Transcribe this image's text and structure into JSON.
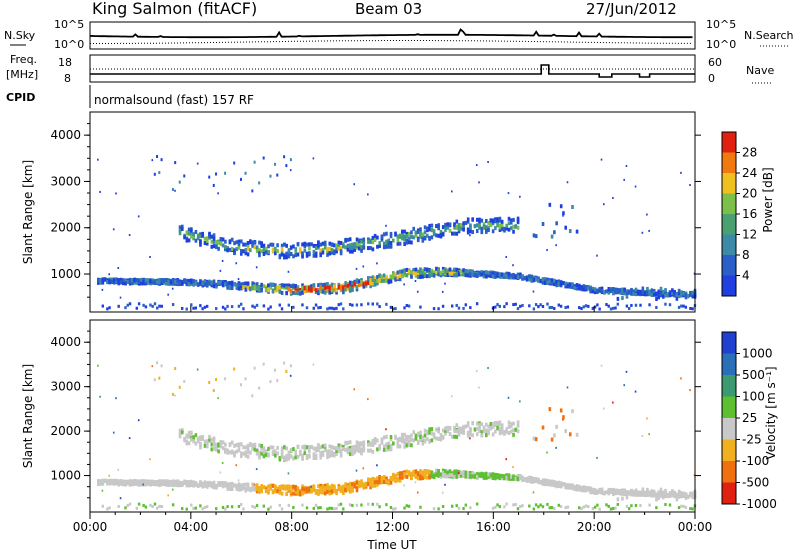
{
  "header": {
    "station": "King Salmon (fitACF)",
    "beam": "Beam 03",
    "date": "27/Jun/2012"
  },
  "panels": {
    "nsky_label": "N.Sky",
    "nsky_ticks": [
      "10^5",
      "10^0"
    ],
    "nsearch_label": "N.Search",
    "nsearch_ticks": [
      "10^5",
      "10^0"
    ],
    "freq_label_1": "Freq.",
    "freq_label_2": "[MHz]",
    "freq_ticks": [
      "18",
      "8"
    ],
    "nave_label": "Nave",
    "nave_ticks": [
      "60",
      "0"
    ],
    "cpid_label": "CPID",
    "cpid_text": "normalsound (fast) 157 RF"
  },
  "chart_data": [
    {
      "type": "heatmap",
      "name": "power",
      "ylabel": "Slant Range [km]",
      "xlabel": "",
      "ylim": [
        180,
        4500
      ],
      "yticks": [
        "1000",
        "2000",
        "3000",
        "4000"
      ],
      "colorbar_label": "Power [dB]",
      "colorbar_ticks": [
        "4",
        "8",
        "12",
        "16",
        "20",
        "24",
        "28"
      ],
      "colorbar_colors": [
        "#1f3fe0",
        "#2a5fc8",
        "#3c8aa8",
        "#4aa070",
        "#7cc04a",
        "#f0c020",
        "#f07a10",
        "#e02010"
      ],
      "bands": [
        {
          "t": [
            0.25,
            4.0,
            8.0,
            10.0,
            11.5,
            12.5,
            14.0,
            15.5,
            17.0,
            20.0,
            24.0
          ],
          "r": [
            850,
            820,
            660,
            700,
            880,
            1000,
            1050,
            1000,
            950,
            650,
            550
          ],
          "level": 8
        },
        {
          "t": [
            3.5,
            5.5,
            7.5,
            9.5,
            11.5,
            13.5,
            15.0,
            17.0
          ],
          "r": [
            1900,
            1600,
            1500,
            1550,
            1700,
            1900,
            2050,
            2050
          ],
          "level": 13
        }
      ]
    },
    {
      "type": "heatmap",
      "name": "velocity",
      "ylabel": "Slant Range [km]",
      "xlabel": "Time UT",
      "ylim": [
        180,
        4500
      ],
      "yticks": [
        "1000",
        "2000",
        "3000",
        "4000"
      ],
      "xticks": [
        "00:00",
        "04:00",
        "08:00",
        "12:00",
        "16:00",
        "20:00",
        "00:00"
      ],
      "colorbar_label": "Velocity [m s⁻¹]",
      "colorbar_ticks": [
        "1000",
        "500",
        "100",
        "25",
        "-25",
        "-100",
        "-500",
        "-1000"
      ],
      "colorbar_colors": [
        "#2040d0",
        "#2a6fb8",
        "#3c9a70",
        "#5cc030",
        "#c8c8c8",
        "#f0b020",
        "#f07010",
        "#e02010"
      ]
    }
  ]
}
